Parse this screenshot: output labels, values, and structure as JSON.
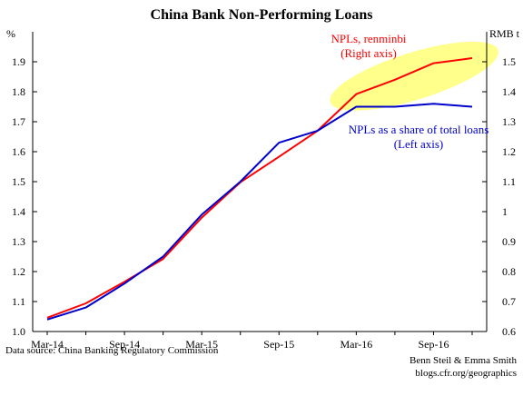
{
  "chart_data": {
    "type": "line",
    "title": "China Bank Non-Performing Loans",
    "left_axis_label": "%",
    "right_axis_label": "RMB t",
    "x_tick_labels": [
      "Mar-14",
      "Sep-14",
      "Mar-15",
      "Sep-15",
      "Mar-16",
      "Sep-16"
    ],
    "x": [
      "Mar-14",
      "Jun-14",
      "Sep-14",
      "Dec-14",
      "Mar-15",
      "Jun-15",
      "Sep-15",
      "Dec-15",
      "Mar-16",
      "Jun-16",
      "Sep-16",
      "Dec-16"
    ],
    "left_ylim": [
      1.0,
      2.0
    ],
    "left_yticks": [
      "1.0",
      "1.1",
      "1.2",
      "1.3",
      "1.4",
      "1.5",
      "1.6",
      "1.7",
      "1.8",
      "1.9"
    ],
    "right_ylim": [
      0.6,
      1.6
    ],
    "right_yticks": [
      "0.6",
      "0.7",
      "0.8",
      "0.9",
      "1",
      "1.1",
      "1.2",
      "1.3",
      "1.4",
      "1.5"
    ],
    "grid": false,
    "series": [
      {
        "name": "NPLs, renminbi",
        "label_lines": [
          "NPLs, renminbi",
          "(Right axis)"
        ],
        "axis": "right",
        "color": "#ff0000",
        "values": [
          0.646,
          0.694,
          0.766,
          0.842,
          0.98,
          1.098,
          1.183,
          1.27,
          1.392,
          1.44,
          1.495,
          1.512
        ]
      },
      {
        "name": "NPLs as a share of total loans",
        "label_lines": [
          "NPLs as a share of total loans",
          "(Left axis)"
        ],
        "axis": "left",
        "color": "#0000cc",
        "values": [
          1.04,
          1.08,
          1.16,
          1.25,
          1.39,
          1.5,
          1.63,
          1.67,
          1.75,
          1.75,
          1.76,
          1.75
        ]
      }
    ],
    "highlight_color": "#ffff66"
  },
  "footer": {
    "source": "Data source: China Banking Regulatory Commission",
    "authors": "Benn Steil & Emma Smith",
    "site": "blogs.cfr.org/geographics"
  }
}
